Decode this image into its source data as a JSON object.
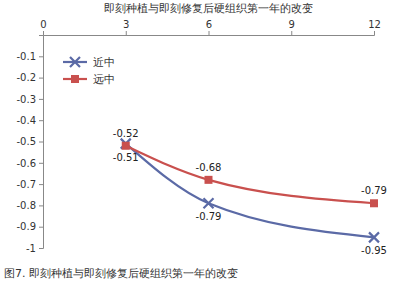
{
  "chart_data": {
    "type": "line",
    "title": "即刻种植与即刻修复后硬组织第一年的改变",
    "caption": "图7.  即刻种植与即刻修复后硬组织第一年的改变",
    "x": [
      3,
      6,
      12
    ],
    "xlim": [
      0,
      12
    ],
    "xticks": [
      0,
      3,
      6,
      9,
      12
    ],
    "ylim": [
      -1,
      0
    ],
    "yticks": [
      -1,
      -0.9,
      -0.8,
      -0.7,
      -0.6,
      -0.5,
      -0.4,
      -0.3,
      -0.2,
      -0.1
    ],
    "grid": false,
    "legend": "upper left",
    "data_labels": true,
    "series": [
      {
        "name": "近中",
        "color": "#5b6aa6",
        "marker": "x",
        "line_style": "smooth",
        "values": [
          -0.51,
          -0.79,
          -0.95
        ]
      },
      {
        "name": "远中",
        "color": "#c9504e",
        "marker": "square",
        "line_style": "smooth",
        "values": [
          -0.52,
          -0.68,
          -0.79
        ]
      }
    ]
  }
}
